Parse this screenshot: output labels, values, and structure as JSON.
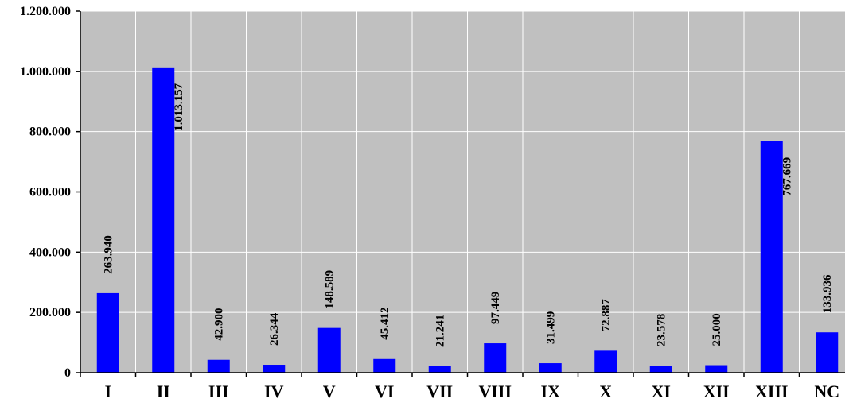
{
  "chart_data": {
    "type": "bar",
    "categories": [
      "I",
      "II",
      "III",
      "IV",
      "V",
      "VI",
      "VII",
      "VIII",
      "IX",
      "X",
      "XI",
      "XII",
      "XIII",
      "NC"
    ],
    "values": [
      263940,
      1013157,
      42900,
      26344,
      148589,
      45412,
      21241,
      97449,
      31499,
      72887,
      23578,
      25000,
      767669,
      133936
    ],
    "value_labels": [
      "263.940",
      "1.013.157",
      "42.900",
      "26.344",
      "148.589",
      "45.412",
      "21.241",
      "97.449",
      "31.499",
      "72.887",
      "23.578",
      "25.000",
      "767.669",
      "133.936"
    ],
    "ylim": [
      0,
      1200000
    ],
    "yticks": [
      0,
      200000,
      400000,
      600000,
      800000,
      1000000,
      1200000
    ],
    "ytick_labels": [
      "0",
      "200.000",
      "400.000",
      "600.000",
      "800.000",
      "1.000.000",
      "1.200.000"
    ],
    "title": "",
    "xlabel": "",
    "ylabel": "",
    "grid": true,
    "legend": "none",
    "colors": {
      "bar": "#0000ff",
      "plot_background": "#c0c0c0",
      "gridline": "#ffffff",
      "axis": "#000000",
      "page_background": "#ffffff"
    }
  }
}
